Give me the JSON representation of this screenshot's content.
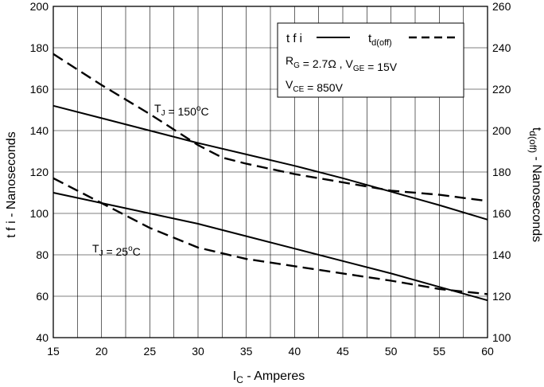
{
  "chart_data": {
    "type": "line",
    "xlabel": {
      "main": "I",
      "sub": "C",
      "rest": " - Amperes"
    },
    "ylabel_left": "t f i - Nanoseconds",
    "ylabel_right": {
      "main": "t",
      "sub": "d(off)",
      "rest": " - Nanoseconds"
    },
    "xlim": [
      15,
      60
    ],
    "ylim_left": [
      40,
      200
    ],
    "ylim_right": [
      100,
      260
    ],
    "x_ticks": [
      15,
      20,
      25,
      30,
      35,
      40,
      45,
      50,
      55,
      60
    ],
    "y_ticks_left": [
      40,
      60,
      80,
      100,
      120,
      140,
      160,
      180,
      200
    ],
    "y_ticks_right": [
      100,
      120,
      140,
      160,
      180,
      200,
      220,
      240,
      260
    ],
    "grid": true,
    "legend": {
      "position": "top-right",
      "tfi_label": "t f i",
      "td_label": {
        "main": "t",
        "sub": "d(off)"
      },
      "cond1": "R_G = 2.7Ω , V_GE = 15V",
      "cond2": "V_CE = 850V"
    },
    "annotations": {
      "t150": "T_J = 150°C",
      "t25": "T_J = 25°C"
    },
    "series": [
      {
        "name": "t f i",
        "axis": "left",
        "style": "solid",
        "condition": "T_J = 150°C",
        "x": [
          15,
          20,
          25,
          30,
          35,
          40,
          45,
          50,
          55,
          60
        ],
        "y": [
          152,
          146,
          140,
          134,
          128.5,
          123,
          117,
          110.5,
          104,
          97
        ]
      },
      {
        "name": "t d(off)",
        "axis": "right",
        "style": "dashed",
        "condition": "T_J = 150°C",
        "x": [
          15,
          20,
          25,
          30,
          32.5,
          35,
          40,
          45,
          50,
          55,
          60
        ],
        "y": [
          237,
          222,
          208,
          193,
          187,
          184,
          179,
          175,
          171,
          169,
          166
        ]
      },
      {
        "name": "t f i",
        "axis": "left",
        "style": "solid",
        "condition": "T_J = 25°C",
        "x": [
          15,
          20,
          25,
          30,
          35,
          40,
          45,
          50,
          55,
          60
        ],
        "y": [
          110,
          105,
          100,
          95,
          89,
          83,
          77,
          71,
          64.5,
          58
        ]
      },
      {
        "name": "t d(off)",
        "axis": "right",
        "style": "dashed",
        "condition": "T_J = 25°C",
        "x": [
          15,
          20,
          25,
          30,
          35,
          40,
          45,
          50,
          55,
          60
        ],
        "y": [
          177,
          165,
          153,
          143.5,
          138,
          134.5,
          131,
          127.5,
          123.5,
          121
        ]
      }
    ]
  }
}
